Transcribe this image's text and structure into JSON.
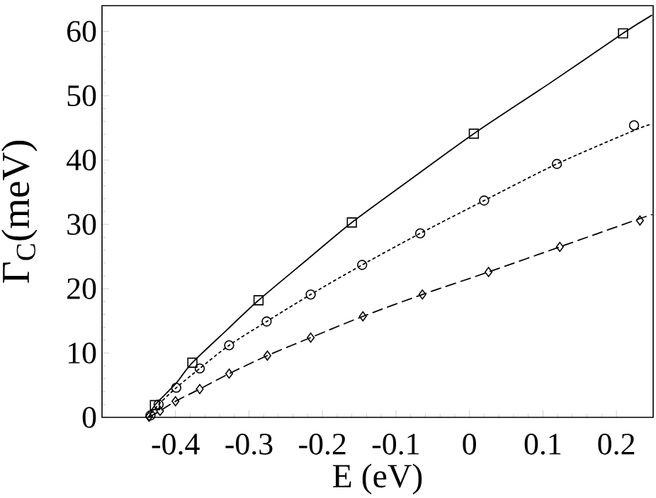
{
  "chart_data": {
    "type": "line",
    "xlabel": "E (eV)",
    "ylabel": "Γ$_{C}$(meV)",
    "xlim": [
      -0.5,
      0.25
    ],
    "ylim": [
      0,
      64
    ],
    "xticks": [
      -0.4,
      -0.3,
      -0.2,
      -0.1,
      0,
      0.1,
      0.2
    ],
    "yticks": [
      0,
      10,
      20,
      30,
      40,
      50,
      60
    ],
    "grid": false,
    "series": [
      {
        "color": "#000000",
        "line_style": "solid",
        "marker": "none",
        "x": [
          -0.436,
          -0.428,
          -0.4,
          -0.377,
          -0.33,
          -0.287,
          -0.22,
          -0.16,
          -0.08,
          0.006,
          0.11,
          0.209,
          0.248
        ],
        "values": [
          0,
          1.9,
          5.2,
          8.5,
          13.6,
          18.2,
          24.6,
          30.3,
          37.0,
          44.1,
          52.0,
          59.7,
          62.5
        ]
      },
      {
        "color": "#000000",
        "line_style": "dotted",
        "marker": "none",
        "x": [
          -0.437,
          -0.423,
          -0.399,
          -0.367,
          -0.327,
          -0.276,
          -0.216,
          -0.146,
          -0.067,
          0.02,
          0.119,
          0.224,
          0.248
        ],
        "values": [
          0,
          2.0,
          4.6,
          7.6,
          11.2,
          14.9,
          19.1,
          23.7,
          28.6,
          33.7,
          39.4,
          44.6,
          45.6
        ]
      },
      {
        "color": "#000000",
        "line_style": "dashed",
        "marker": "none",
        "x": [
          -0.437,
          -0.421,
          -0.4,
          -0.367,
          -0.327,
          -0.275,
          -0.216,
          -0.145,
          -0.064,
          0.026,
          0.123,
          0.232,
          0.248
        ],
        "values": [
          0,
          1.0,
          2.5,
          4.4,
          6.8,
          9.6,
          12.4,
          15.7,
          19.1,
          22.6,
          26.5,
          30.9,
          31.5
        ]
      },
      {
        "type": "scatter",
        "color": "#000000",
        "marker": "square",
        "x": [
          -0.428,
          -0.377,
          -0.287,
          -0.16,
          0.006,
          0.209
        ],
        "values": [
          1.9,
          8.5,
          18.2,
          30.3,
          44.1,
          59.7
        ]
      },
      {
        "type": "scatter",
        "color": "#000000",
        "marker": "circle",
        "x": [
          -0.434,
          -0.423,
          -0.399,
          -0.367,
          -0.327,
          -0.276,
          -0.216,
          -0.146,
          -0.067,
          0.02,
          0.119,
          0.224
        ],
        "values": [
          0.3,
          2.0,
          4.6,
          7.6,
          11.2,
          14.9,
          19.1,
          23.7,
          28.6,
          33.7,
          39.4,
          45.4
        ]
      },
      {
        "type": "scatter",
        "color": "#000000",
        "marker": "diamond",
        "x": [
          -0.436,
          -0.421,
          -0.4,
          -0.367,
          -0.327,
          -0.275,
          -0.216,
          -0.145,
          -0.064,
          0.026,
          0.123,
          0.232
        ],
        "values": [
          0.1,
          1.0,
          2.5,
          4.4,
          6.8,
          9.6,
          12.4,
          15.7,
          19.1,
          22.6,
          26.5,
          30.6
        ]
      }
    ]
  }
}
